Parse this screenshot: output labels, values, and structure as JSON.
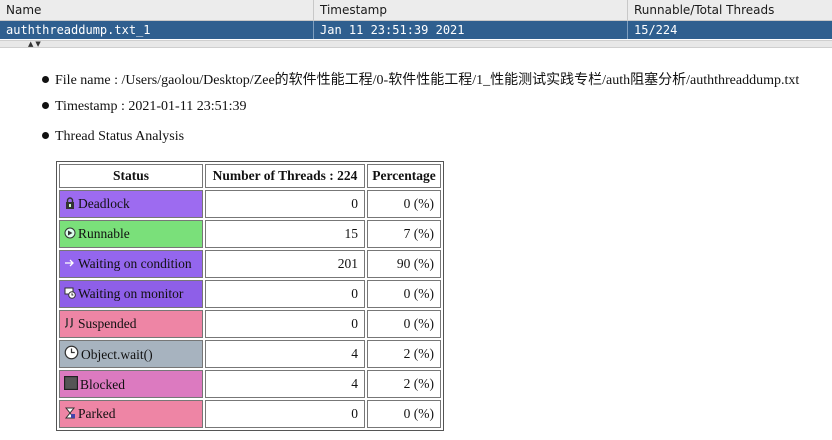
{
  "list": {
    "columns": [
      "Name",
      "Timestamp",
      "Runnable/Total Threads"
    ],
    "selected_row": {
      "name": "auththreaddump.txt_1",
      "timestamp": "Jan 11 23:51:39 2021",
      "threads": "15/224"
    }
  },
  "info": {
    "file_name": "File name : /Users/gaolou/Desktop/Zee的软件性能工程/0-软件性能工程/1_性能测试实践专栏/auth阻塞分析/auththreaddump.txt",
    "timestamp": "Timestamp : 2021-01-11 23:51:39",
    "analysis_title": "Thread Status Analysis"
  },
  "table": {
    "headers": [
      "Status",
      "Number of Threads : 224",
      "Percentage"
    ],
    "rows": [
      {
        "status": "Deadlock",
        "count": "0",
        "pct": "0 (%)",
        "color": "#9d6bf0",
        "icon": "lock-icon"
      },
      {
        "status": "Runnable",
        "count": "15",
        "pct": "7 (%)",
        "color": "#7ae07a",
        "icon": "runnable-icon"
      },
      {
        "status": "Waiting on condition",
        "count": "201",
        "pct": "90 (%)",
        "color": "#9466ee",
        "icon": "arrow-icon"
      },
      {
        "status": "Waiting on monitor",
        "count": "0",
        "pct": "0 (%)",
        "color": "#8e5fe8",
        "icon": "monitor-icon"
      },
      {
        "status": "Suspended",
        "count": "0",
        "pct": "0 (%)",
        "color": "#ee85a5",
        "icon": "suspend-icon"
      },
      {
        "status": "Object.wait()",
        "count": "4",
        "pct": "2 (%)",
        "color": "#a7b3bf",
        "icon": "clock-icon"
      },
      {
        "status": "Blocked",
        "count": "4",
        "pct": "2 (%)",
        "color": "#dc7ac0",
        "icon": "blocked-icon"
      },
      {
        "status": "Parked",
        "count": "0",
        "pct": "0 (%)",
        "color": "#ee85a5",
        "icon": "hourglass-icon"
      }
    ]
  }
}
